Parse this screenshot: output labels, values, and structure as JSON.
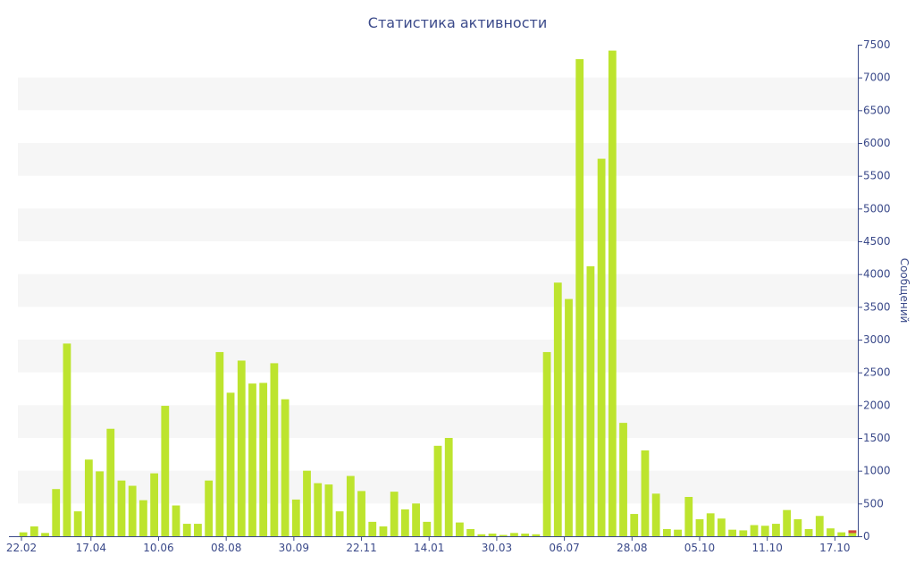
{
  "chart_data": {
    "type": "bar",
    "title": "Статистика активности",
    "xlabel": "",
    "ylabel": "Сообщений",
    "ylim": [
      0,
      7500
    ],
    "y_ticks": [
      0,
      500,
      1000,
      1500,
      2000,
      2500,
      3000,
      3500,
      4000,
      4500,
      5000,
      5500,
      6000,
      6500,
      7000,
      7500
    ],
    "y_axis_side": "right",
    "grid": "alternating horizontal bands",
    "x_tick_labels": [
      "22.02",
      "17.04",
      "10.06",
      "08.08",
      "30.09",
      "22.11",
      "14.01",
      "30.03",
      "06.07",
      "28.08",
      "05.10",
      "11.10",
      "17.10"
    ],
    "bar_color": "#bde42e",
    "last_bar_color": "#d4463b",
    "axis_color": "#3b4a8a",
    "band_color": "#f6f6f6",
    "series": [
      {
        "values": [
          60,
          150,
          50,
          720,
          2940,
          380,
          1170,
          990,
          1640,
          850,
          770,
          550,
          960,
          1990,
          470,
          190,
          190,
          850,
          2810,
          2190,
          2680,
          2330,
          2340,
          2640,
          2090,
          560,
          1000,
          810,
          790,
          380,
          920,
          690,
          220,
          150,
          680,
          410,
          500,
          220,
          1380,
          1500,
          210,
          110,
          30,
          40,
          20,
          50,
          40,
          30,
          2810,
          3870,
          3620,
          7280,
          4120,
          5760,
          7410,
          1730,
          340,
          1310,
          650,
          110,
          100,
          600,
          260,
          350,
          270,
          100,
          90,
          170,
          160,
          190,
          400,
          260,
          110,
          310,
          120,
          60,
          90
        ]
      }
    ]
  }
}
